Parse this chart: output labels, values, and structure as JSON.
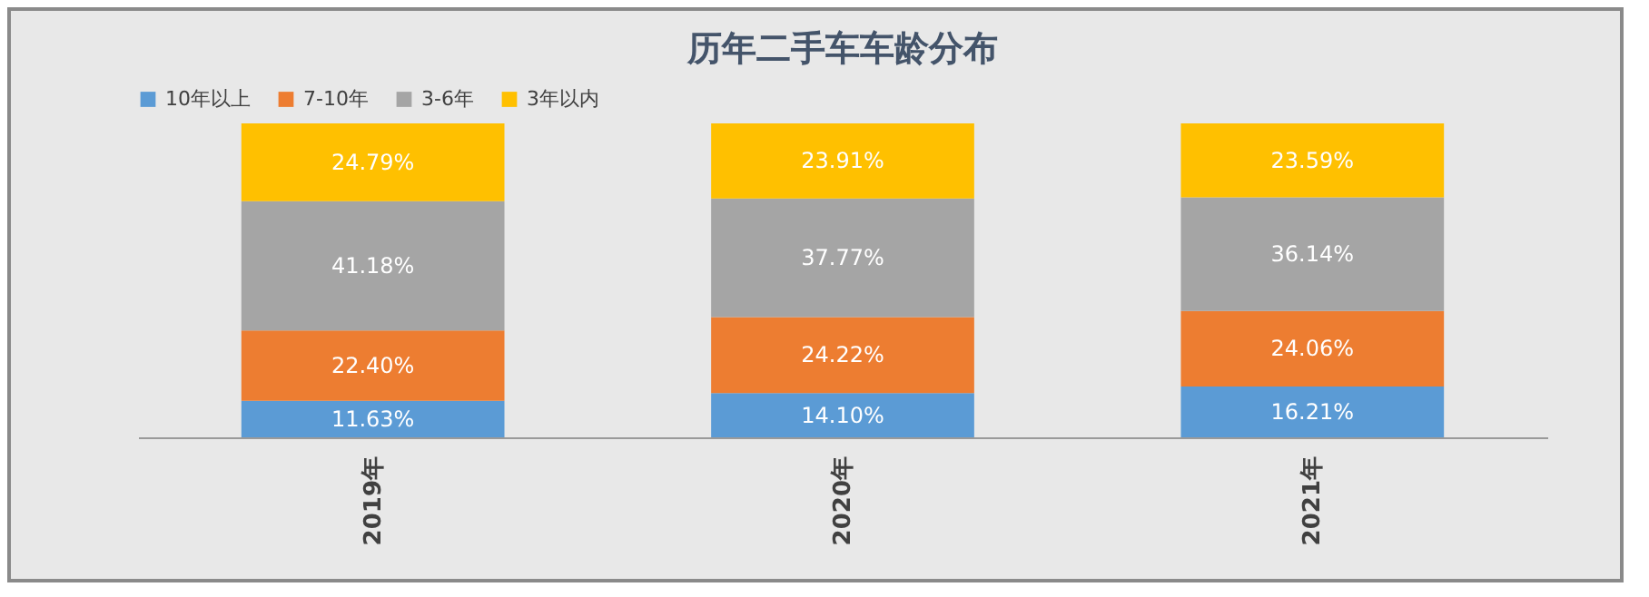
{
  "chart_data": {
    "type": "bar",
    "title": "历年二手车车龄分布",
    "categories": [
      "2019年",
      "2020年",
      "2021年"
    ],
    "stacked": true,
    "legend": "top",
    "series": [
      {
        "name": "10年以上",
        "color": "#5b9bd5",
        "values": [
          11.63,
          14.1,
          16.21
        ],
        "value_labels": [
          "11.63%",
          "14.10%",
          "16.21%"
        ]
      },
      {
        "name": "7-10年",
        "color": "#ed7d31",
        "values": [
          22.4,
          24.22,
          24.06
        ],
        "value_labels": [
          "22.40%",
          "24.22%",
          "24.06%"
        ]
      },
      {
        "name": "3-6年",
        "color": "#a5a5a5",
        "values": [
          41.18,
          37.77,
          36.14
        ],
        "value_labels": [
          "41.18%",
          "37.77%",
          "36.14%"
        ]
      },
      {
        "name": "3年以内",
        "color": "#ffc000",
        "values": [
          24.79,
          23.91,
          23.59
        ],
        "value_labels": [
          "24.79%",
          "23.91%",
          "23.59%"
        ]
      }
    ]
  }
}
